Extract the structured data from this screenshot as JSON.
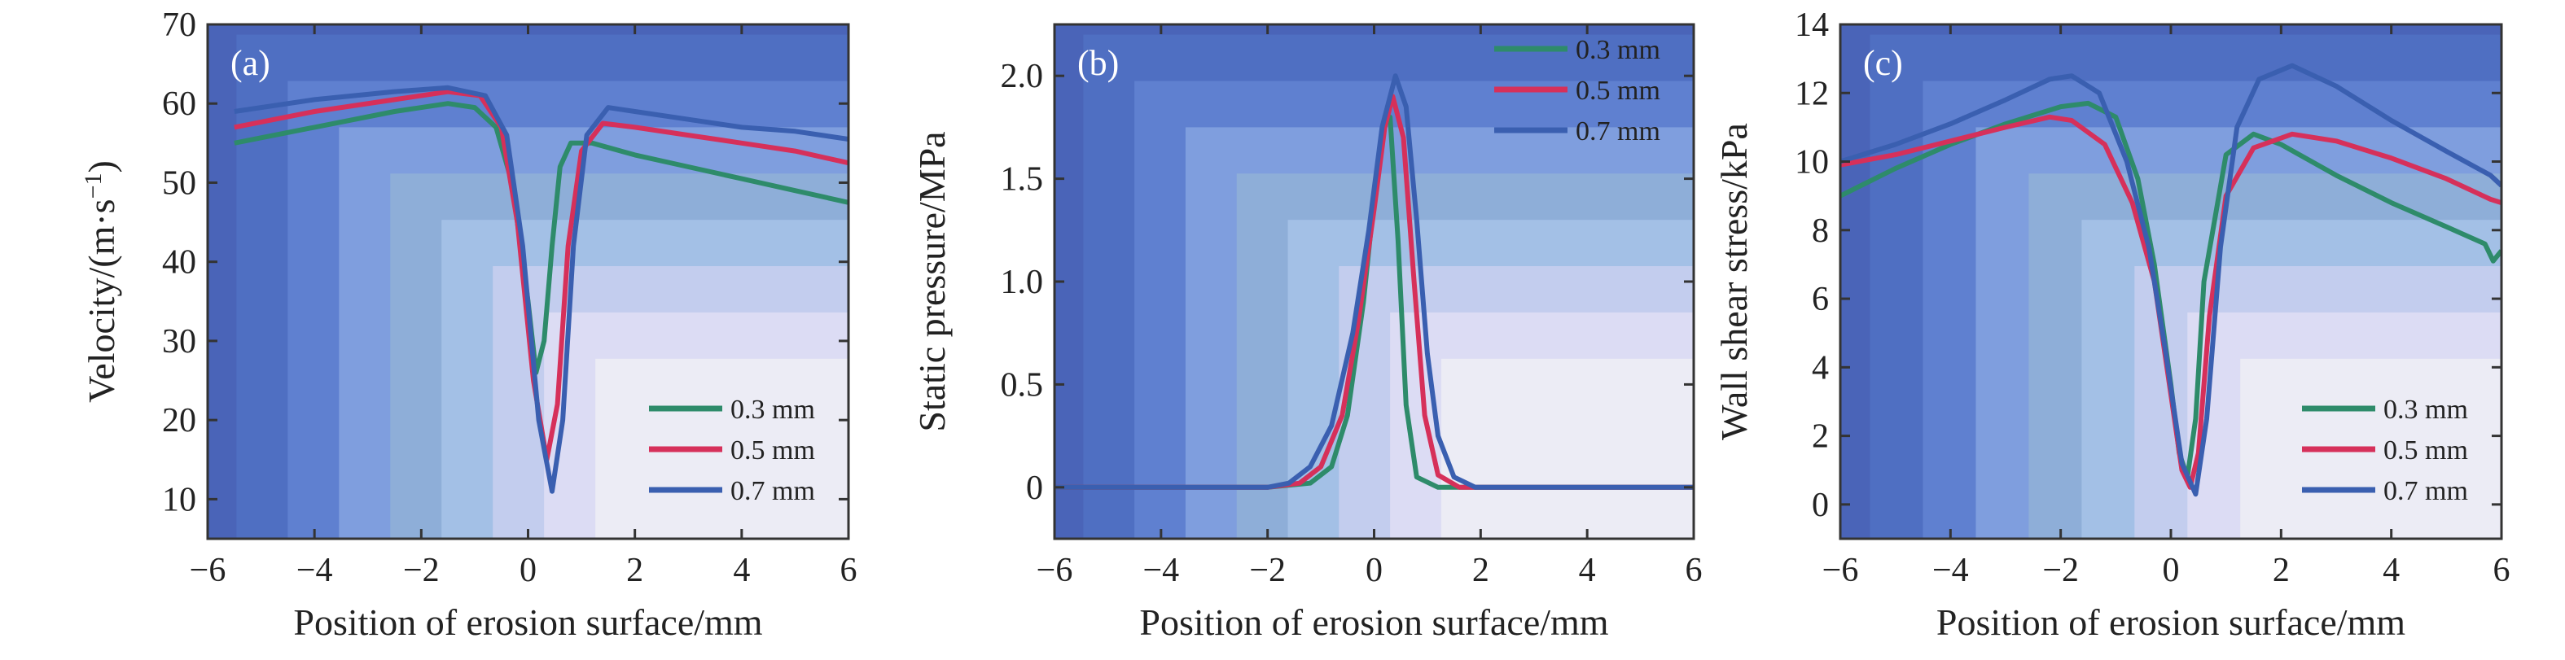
{
  "chart_data": [
    {
      "type": "line",
      "panel_label": "(a)",
      "xlabel": "Position of erosion surface/mm",
      "ylabel_main": "Velocity/(m·s",
      "ylabel_sup": "−1",
      "ylabel_end": ")",
      "xlim": [
        -6,
        6
      ],
      "ylim": [
        5,
        70
      ],
      "xticks": [
        -6,
        -4,
        -2,
        0,
        2,
        4,
        6
      ],
      "xtick_labels": [
        "−6",
        "−4",
        "−2",
        "0",
        "2",
        "4",
        "6"
      ],
      "yticks": [
        10,
        20,
        30,
        40,
        50,
        60,
        70
      ],
      "ytick_labels": [
        "10",
        "20",
        "30",
        "40",
        "50",
        "60",
        "70"
      ],
      "legend_position": "bottom-right",
      "series": [
        {
          "name": "0.3 mm",
          "color": "#2e8b6a",
          "x": [
            -5.5,
            -4,
            -2.5,
            -1.5,
            -1.0,
            -0.6,
            -0.3,
            0.0,
            0.15,
            0.3,
            0.45,
            0.6,
            0.8,
            1.2,
            2,
            3,
            4,
            5,
            6
          ],
          "y": [
            55,
            57,
            59,
            60,
            59.5,
            57,
            50,
            35,
            26,
            30,
            42,
            52,
            55,
            55,
            53.5,
            52,
            50.5,
            49,
            47.5
          ]
        },
        {
          "name": "0.5 mm",
          "color": "#d6305a",
          "x": [
            -5.5,
            -4,
            -2.5,
            -1.5,
            -0.9,
            -0.5,
            -0.2,
            0.1,
            0.35,
            0.55,
            0.75,
            1.0,
            1.4,
            2,
            3,
            4,
            5,
            6
          ],
          "y": [
            57,
            59,
            60.5,
            61.5,
            61,
            57,
            45,
            25,
            15,
            22,
            42,
            54,
            57.5,
            57,
            56,
            55,
            54,
            52.5
          ]
        },
        {
          "name": "0.7 mm",
          "color": "#3a5fb0",
          "x": [
            -5.5,
            -4,
            -2.5,
            -1.5,
            -0.8,
            -0.4,
            -0.1,
            0.2,
            0.45,
            0.65,
            0.85,
            1.1,
            1.5,
            2,
            3,
            4,
            5,
            6
          ],
          "y": [
            59,
            60.5,
            61.5,
            62,
            61,
            56,
            42,
            20,
            11,
            20,
            42,
            56,
            59.5,
            59,
            58,
            57,
            56.5,
            55.5
          ]
        }
      ]
    },
    {
      "type": "line",
      "panel_label": "(b)",
      "xlabel": "Position of erosion surface/mm",
      "ylabel_main": "Static pressure/MPa",
      "ylabel_sup": "",
      "ylabel_end": "",
      "xlim": [
        -6,
        6
      ],
      "ylim": [
        -0.25,
        2.25
      ],
      "xticks": [
        -6,
        -4,
        -2,
        0,
        2,
        4,
        6
      ],
      "xtick_labels": [
        "−6",
        "−4",
        "−2",
        "0",
        "2",
        "4",
        "6"
      ],
      "yticks": [
        0,
        0.5,
        1.0,
        1.5,
        2.0
      ],
      "ytick_labels": [
        "0",
        "0.5",
        "1.0",
        "1.5",
        "2.0"
      ],
      "legend_position": "top-right",
      "series": [
        {
          "name": "0.3 mm",
          "color": "#2e8b6a",
          "x": [
            -6,
            -2,
            -1.2,
            -0.8,
            -0.5,
            -0.2,
            0.0,
            0.2,
            0.3,
            0.45,
            0.6,
            0.8,
            1.2,
            6
          ],
          "y": [
            0,
            0,
            0.02,
            0.1,
            0.35,
            0.9,
            1.4,
            1.8,
            1.8,
            1.2,
            0.4,
            0.05,
            0,
            0
          ]
        },
        {
          "name": "0.5 mm",
          "color": "#d6305a",
          "x": [
            -6,
            -2,
            -1.4,
            -1.0,
            -0.6,
            -0.3,
            0.0,
            0.2,
            0.35,
            0.55,
            0.75,
            0.95,
            1.2,
            1.6,
            6
          ],
          "y": [
            0,
            0,
            0.02,
            0.1,
            0.35,
            0.8,
            1.35,
            1.75,
            1.9,
            1.7,
            1.0,
            0.35,
            0.06,
            0,
            0
          ]
        },
        {
          "name": "0.7 mm",
          "color": "#3a5fb0",
          "x": [
            -6,
            -2,
            -1.6,
            -1.2,
            -0.8,
            -0.4,
            -0.1,
            0.15,
            0.4,
            0.6,
            0.8,
            1.0,
            1.2,
            1.5,
            1.9,
            6
          ],
          "y": [
            0,
            0,
            0.02,
            0.1,
            0.3,
            0.75,
            1.25,
            1.75,
            2.0,
            1.85,
            1.3,
            0.65,
            0.25,
            0.05,
            0,
            0
          ]
        }
      ]
    },
    {
      "type": "line",
      "panel_label": "(c)",
      "xlabel": "Position of erosion surface/mm",
      "ylabel_main": "Wall shear stress/kPa",
      "ylabel_sup": "",
      "ylabel_end": "",
      "xlim": [
        -6,
        6
      ],
      "ylim": [
        -1,
        14
      ],
      "xticks": [
        -6,
        -4,
        -2,
        0,
        2,
        4,
        6
      ],
      "xtick_labels": [
        "−6",
        "−4",
        "−2",
        "0",
        "2",
        "4",
        "6"
      ],
      "yticks": [
        0,
        2,
        4,
        6,
        8,
        10,
        12,
        14
      ],
      "ytick_labels": [
        "0",
        "2",
        "4",
        "6",
        "8",
        "10",
        "12",
        "14"
      ],
      "legend_position": "bottom-right",
      "series": [
        {
          "name": "0.3 mm",
          "color": "#2e8b6a",
          "x": [
            -6,
            -5,
            -4,
            -3,
            -2,
            -1.5,
            -1.0,
            -0.6,
            -0.3,
            0.0,
            0.15,
            0.3,
            0.45,
            0.6,
            1.0,
            1.5,
            2,
            3,
            4,
            5,
            5.7,
            5.85,
            6
          ],
          "y": [
            9.0,
            9.8,
            10.5,
            11.1,
            11.6,
            11.7,
            11.3,
            9.5,
            7.0,
            3.5,
            1.5,
            0.8,
            2.5,
            6.5,
            10.2,
            10.8,
            10.5,
            9.6,
            8.8,
            8.1,
            7.6,
            7.1,
            7.4
          ]
        },
        {
          "name": "0.5 mm",
          "color": "#d6305a",
          "x": [
            -6,
            -5,
            -4,
            -3,
            -2.2,
            -1.8,
            -1.2,
            -0.7,
            -0.3,
            0.0,
            0.2,
            0.35,
            0.5,
            0.7,
            1.0,
            1.5,
            2.2,
            3,
            4,
            5,
            5.8,
            6
          ],
          "y": [
            9.9,
            10.2,
            10.6,
            11.0,
            11.3,
            11.2,
            10.5,
            8.8,
            6.5,
            3.2,
            1.0,
            0.5,
            1.5,
            5.5,
            9.0,
            10.4,
            10.8,
            10.6,
            10.1,
            9.5,
            8.9,
            8.8
          ]
        },
        {
          "name": "0.7 mm",
          "color": "#3a5fb0",
          "x": [
            -6,
            -5,
            -4,
            -3,
            -2.2,
            -1.8,
            -1.3,
            -0.8,
            -0.4,
            -0.1,
            0.2,
            0.45,
            0.65,
            0.9,
            1.2,
            1.6,
            2.2,
            3,
            4,
            5,
            5.8,
            6
          ],
          "y": [
            10.0,
            10.5,
            11.1,
            11.8,
            12.4,
            12.5,
            12.0,
            10.0,
            7.5,
            4.5,
            1.2,
            0.3,
            2.5,
            7.5,
            11.0,
            12.4,
            12.8,
            12.2,
            11.2,
            10.3,
            9.6,
            9.3
          ]
        }
      ]
    }
  ]
}
